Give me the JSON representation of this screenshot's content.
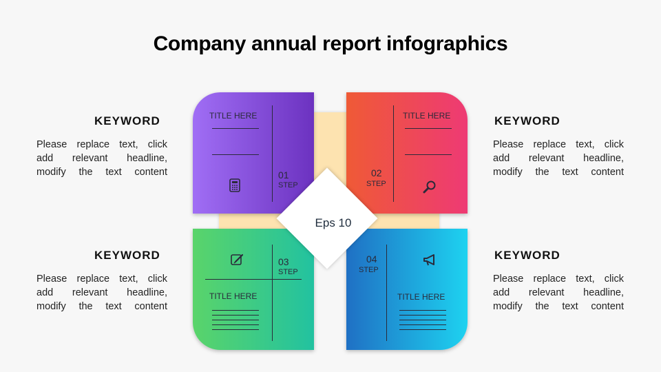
{
  "title": "Company annual report infographics",
  "center_label": "Eps 10",
  "steps": [
    {
      "number": "01",
      "step": "STEP",
      "title": "TITLE HERE",
      "icon": "calculator-icon",
      "color_start": "#a06ef5",
      "color_end": "#6c32c0"
    },
    {
      "number": "02",
      "step": "STEP",
      "title": "TITLE HERE",
      "icon": "magnifier-icon",
      "color_start": "#ef5a36",
      "color_end": "#ee3a74"
    },
    {
      "number": "03",
      "step": "STEP",
      "title": "TITLE HERE",
      "icon": "edit-note-icon",
      "color_start": "#5ad46a",
      "color_end": "#22c2a0"
    },
    {
      "number": "04",
      "step": "STEP",
      "title": "TITLE HERE",
      "icon": "megaphone-icon",
      "color_start": "#1f70c4",
      "color_end": "#1ed2f0"
    }
  ],
  "keywords": [
    {
      "heading": "KEYWORD",
      "lines": [
        "Please replace text, click",
        "add relevant headline,",
        "modify the text content"
      ]
    },
    {
      "heading": "KEYWORD",
      "lines": [
        "Please replace text, click",
        "add relevant headline,",
        "modify the text content"
      ]
    },
    {
      "heading": "KEYWORD",
      "lines": [
        "Please replace text, click",
        "add relevant headline,",
        "modify the text content"
      ]
    },
    {
      "heading": "KEYWORD",
      "lines": [
        "Please replace text, click",
        "add relevant headline,",
        "modify the text content"
      ]
    }
  ],
  "frame_color": "#fde3b0"
}
